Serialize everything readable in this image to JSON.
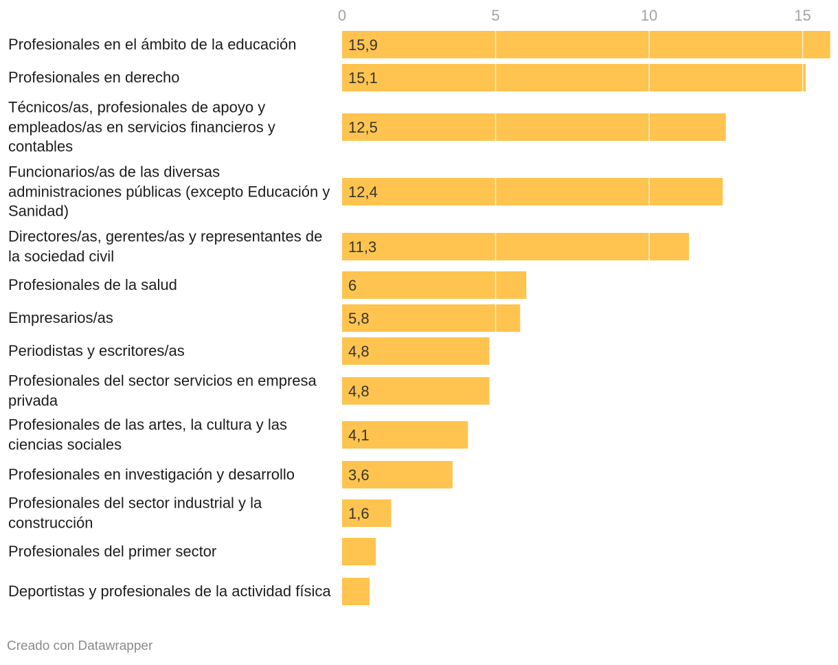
{
  "chart_data": {
    "type": "bar",
    "orientation": "horizontal",
    "xlim": [
      0,
      16
    ],
    "ticks": [
      {
        "value": 0,
        "label": "0"
      },
      {
        "value": 5,
        "label": "5"
      },
      {
        "value": 10,
        "label": "10"
      },
      {
        "value": 15,
        "label": "15"
      }
    ],
    "bar_color": "#FEC44F",
    "grid": true,
    "rows": [
      {
        "category": "Profesionales en el ámbito de la educación",
        "value": 15.9,
        "label": "15,9"
      },
      {
        "category": "Profesionales en derecho",
        "value": 15.1,
        "label": "15,1"
      },
      {
        "category": "Técnicos/as, profesionales de apoyo y empleados/as en servicios financieros y contables",
        "value": 12.5,
        "label": "12,5"
      },
      {
        "category": "Funcionarios/as de las diversas administraciones públicas (excepto Educación y Sanidad)",
        "value": 12.4,
        "label": "12,4"
      },
      {
        "category": "Directores/as, gerentes/as y representantes de la sociedad civil",
        "value": 11.3,
        "label": "11,3"
      },
      {
        "category": "Profesionales de la salud",
        "value": 6,
        "label": "6"
      },
      {
        "category": "Empresarios/as",
        "value": 5.8,
        "label": "5,8"
      },
      {
        "category": "Periodistas y escritores/as",
        "value": 4.8,
        "label": "4,8"
      },
      {
        "category": "Profesionales del sector servicios en empresa privada",
        "value": 4.8,
        "label": "4,8"
      },
      {
        "category": "Profesionales de las artes, la cultura y las ciencias sociales",
        "value": 4.1,
        "label": "4,1"
      },
      {
        "category": "Profesionales en investigación y desarrollo",
        "value": 3.6,
        "label": "3,6"
      },
      {
        "category": "Profesionales del sector industrial y la construcción",
        "value": 1.6,
        "label": "1,6"
      },
      {
        "category": "Profesionales del primer sector",
        "value": 1.1,
        "label": ""
      },
      {
        "category": "Deportistas y profesionales de la actividad física",
        "value": 0.9,
        "label": ""
      }
    ]
  },
  "footer": {
    "credit": "Creado con Datawrapper"
  }
}
